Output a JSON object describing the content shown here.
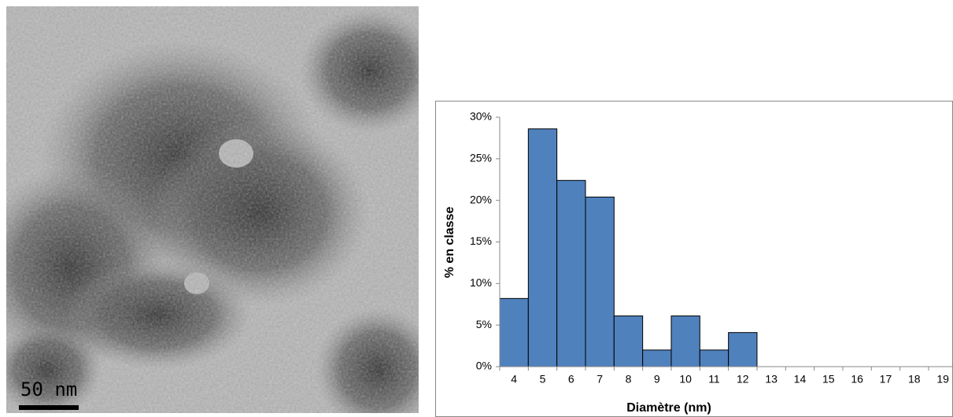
{
  "micrograph": {
    "scale_label": "50 nm"
  },
  "chart_data": {
    "type": "bar",
    "categories": [
      "4",
      "5",
      "6",
      "7",
      "8",
      "9",
      "10",
      "11",
      "12",
      "13",
      "14",
      "15",
      "16",
      "17",
      "18",
      "19"
    ],
    "values": [
      8.2,
      28.6,
      22.4,
      20.4,
      6.1,
      2.0,
      6.1,
      2.0,
      4.1,
      0,
      0,
      0,
      0,
      0,
      0,
      0
    ],
    "color": "#4f81bd",
    "ylim": [
      0,
      30
    ],
    "yticks": [
      {
        "value": 0,
        "label": "0%"
      },
      {
        "value": 5,
        "label": "5%"
      },
      {
        "value": 10,
        "label": "10%"
      },
      {
        "value": 15,
        "label": "15%"
      },
      {
        "value": 20,
        "label": "20%"
      },
      {
        "value": 25,
        "label": "25%"
      },
      {
        "value": 30,
        "label": "30%"
      }
    ],
    "xlabel": "Diamètre (nm)",
    "ylabel": "% en classe",
    "grid": false
  }
}
